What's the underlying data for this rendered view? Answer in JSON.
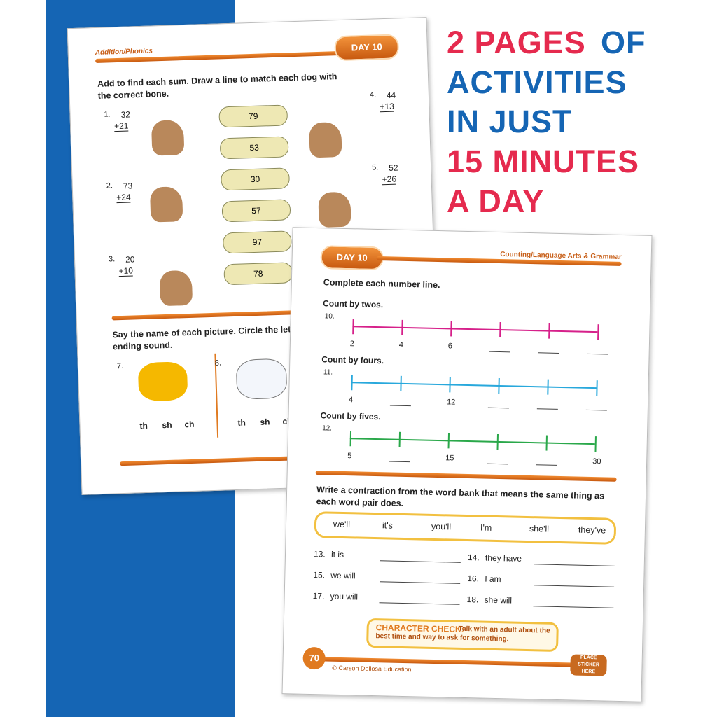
{
  "headline": [
    "2 PAGES",
    "OF",
    "ACTIVITIES",
    "IN JUST",
    "15 MINUTES",
    "A DAY"
  ],
  "back_page": {
    "subject": "Addition/Phonics",
    "day": "DAY 10",
    "instruction": "Add to find each sum. Draw a line to match each dog with the correct bone.",
    "problems": [
      {
        "number": "1.",
        "top": "32",
        "bottom": "+21"
      },
      {
        "number": "2.",
        "top": "73",
        "bottom": "+24"
      },
      {
        "number": "3.",
        "top": "20",
        "bottom": "+10"
      },
      {
        "number": "4.",
        "top": "44",
        "bottom": "+13"
      },
      {
        "number": "5.",
        "top": "52",
        "bottom": "+26"
      }
    ],
    "bones": [
      "79",
      "53",
      "30",
      "57",
      "97",
      "78"
    ],
    "phonics_instruction": [
      "Say the name of each picture. Circle the letter",
      "ending sound."
    ],
    "phonics_items": [
      {
        "number": "7.",
        "choices": [
          "th",
          "sh",
          "ch"
        ]
      },
      {
        "number": "8.",
        "choices": [
          "th",
          "sh",
          "ch"
        ]
      }
    ]
  },
  "front_page": {
    "day": "DAY 10",
    "subject": "Counting/Language Arts & Grammar",
    "instruction": "Complete each number line.",
    "number_lines": [
      {
        "label": "Count by twos.",
        "number": "10.",
        "values": [
          "2",
          "4",
          "6",
          null,
          null,
          null
        ]
      },
      {
        "label": "Count by fours.",
        "number": "11.",
        "values": [
          "4",
          null,
          "12",
          null,
          null,
          null
        ]
      },
      {
        "label": "Count by fives.",
        "number": "12.",
        "values": [
          "5",
          null,
          "15",
          null,
          null,
          "30"
        ]
      }
    ],
    "contraction_instruction": "Write a contraction from the word bank that means the same thing as each word pair does.",
    "word_bank": [
      "we'll",
      "it's",
      "you'll",
      "I'm",
      "she'll",
      "they've"
    ],
    "items": [
      {
        "number": "13.",
        "text": "it is"
      },
      {
        "number": "14.",
        "text": "they have"
      },
      {
        "number": "15.",
        "text": "we will"
      },
      {
        "number": "16.",
        "text": "I am"
      },
      {
        "number": "17.",
        "text": "you will"
      },
      {
        "number": "18.",
        "text": "she will"
      }
    ],
    "character_check": {
      "title": "CHARACTER CHECK:",
      "text": "Talk with an adult about the best time and way to ask for something."
    },
    "page_number": "70",
    "footer": "© Carson Dellosa Education",
    "sticker": "PLACE STICKER HERE"
  }
}
